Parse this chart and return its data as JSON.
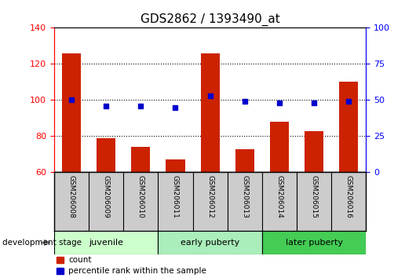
{
  "title": "GDS2862 / 1393490_at",
  "samples": [
    "GSM206008",
    "GSM206009",
    "GSM206010",
    "GSM206011",
    "GSM206012",
    "GSM206013",
    "GSM206014",
    "GSM206015",
    "GSM206016"
  ],
  "counts": [
    126,
    79,
    74,
    67,
    126,
    73,
    88,
    83,
    110
  ],
  "percentile_ranks": [
    50,
    46,
    46,
    45,
    53,
    49,
    48,
    48,
    49
  ],
  "ylim_left": [
    60,
    140
  ],
  "ylim_right": [
    0,
    100
  ],
  "yticks_left": [
    60,
    80,
    100,
    120,
    140
  ],
  "yticks_right": [
    0,
    25,
    50,
    75,
    100
  ],
  "bar_color": "#cc2200",
  "dot_color": "#0000cc",
  "stage_groups": [
    {
      "label": "juvenile",
      "indices": [
        0,
        1,
        2
      ],
      "color": "#ccffcc"
    },
    {
      "label": "early puberty",
      "indices": [
        3,
        4,
        5
      ],
      "color": "#aaeebb"
    },
    {
      "label": "later puberty",
      "indices": [
        6,
        7,
        8
      ],
      "color": "#44cc55"
    }
  ],
  "legend_items": [
    {
      "label": "count",
      "color": "#cc2200"
    },
    {
      "label": "percentile rank within the sample",
      "color": "#0000cc"
    }
  ],
  "dev_stage_label": "development stage",
  "tick_label_area_color": "#cccccc"
}
